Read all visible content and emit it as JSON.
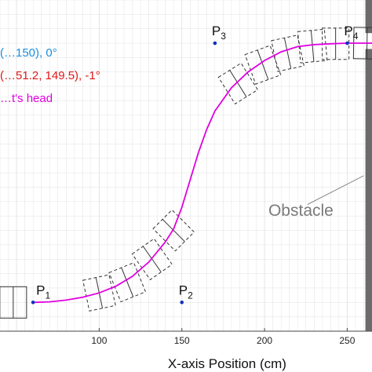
{
  "chart_data": {
    "type": "line",
    "xlabel": "X-axis Position (cm)",
    "ylabel": "",
    "xlim": [
      40,
      265
    ],
    "ylim": [
      50,
      165
    ],
    "x_ticks": [
      100,
      150,
      200,
      250
    ],
    "grid": true,
    "colors": {
      "path": "#e000e0",
      "point": "#1030c0",
      "legend_start": "#1a8fe0",
      "legend_end": "#e01818",
      "legend_head": "#e000e0",
      "obstacle": "#6b6b6b",
      "grid": "#e2e2e2",
      "robot_box": "#333333"
    },
    "legend": [
      {
        "text": "(…150), 0°",
        "color_key": "legend_start"
      },
      {
        "text": "(…51.2, 149.5), -1°",
        "color_key": "legend_end"
      },
      {
        "text": "…t's head",
        "color_key": "legend_head"
      }
    ],
    "points": [
      {
        "name": "P",
        "sub": "1",
        "x": 60,
        "y": 60
      },
      {
        "name": "P",
        "sub": "2",
        "x": 150,
        "y": 60
      },
      {
        "name": "P",
        "sub": "3",
        "x": 170,
        "y": 150
      },
      {
        "name": "P",
        "sub": "4",
        "x": 250,
        "y": 150
      }
    ],
    "path": {
      "x": [
        60,
        70,
        80,
        90,
        100,
        110,
        120,
        130,
        140,
        145,
        150,
        155,
        160,
        165,
        170,
        180,
        190,
        200,
        210,
        220,
        230,
        240,
        250,
        265
      ],
      "y": [
        60,
        60.2,
        60.8,
        61.8,
        63.3,
        65.6,
        69,
        74,
        81,
        85.5,
        93,
        102.5,
        112,
        120,
        126.5,
        134.5,
        140,
        144,
        147,
        148.8,
        149.5,
        149.8,
        150,
        150
      ]
    },
    "robot_poses": [
      {
        "x": 48,
        "y": 60,
        "angle": 0,
        "dashed": false
      },
      {
        "x": 100,
        "y": 63.3,
        "angle": 12,
        "dashed": true
      },
      {
        "x": 117,
        "y": 67,
        "angle": 22,
        "dashed": true
      },
      {
        "x": 132,
        "y": 75,
        "angle": 35,
        "dashed": true
      },
      {
        "x": 145,
        "y": 85,
        "angle": 45,
        "dashed": true
      },
      {
        "x": 184,
        "y": 136,
        "angle": 32,
        "dashed": true
      },
      {
        "x": 199,
        "y": 142.5,
        "angle": 20,
        "dashed": true
      },
      {
        "x": 214,
        "y": 146.5,
        "angle": 12,
        "dashed": true
      },
      {
        "x": 229,
        "y": 149,
        "angle": 5,
        "dashed": true
      },
      {
        "x": 243,
        "y": 149.8,
        "angle": 0,
        "dashed": true
      },
      {
        "x": 262,
        "y": 150,
        "angle": -1,
        "dashed": false
      }
    ],
    "obstacle": {
      "x0": 261,
      "x1": 265,
      "y0": 50,
      "y1": 148,
      "y_band0": 153.5,
      "label": "Obstacle"
    },
    "annotation": {
      "text": "Obstacle",
      "arrow_from": [
        226,
        94
      ],
      "arrow_to": [
        260,
        104
      ],
      "text_at": [
        222,
        90
      ]
    }
  }
}
